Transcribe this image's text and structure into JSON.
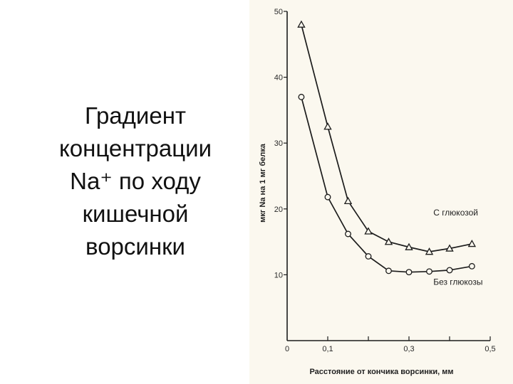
{
  "slide": {
    "title_lines": [
      "Градиент",
      "концентрации",
      "Na⁺ по ходу",
      "кишечной",
      "ворсинки"
    ]
  },
  "chart_data": {
    "type": "line",
    "title": "",
    "xlabel": "Расстояние от кончика ворсинки, мм",
    "ylabel": "мкг Na на 1 мг белка",
    "xlim": [
      0,
      0.5
    ],
    "ylim": [
      0,
      50
    ],
    "x_ticks": [
      {
        "value": 0,
        "label": "0"
      },
      {
        "value": 0.1,
        "label": "0,1"
      },
      {
        "value": 0.3,
        "label": "0,3"
      },
      {
        "value": 0.5,
        "label": "0,5"
      }
    ],
    "y_ticks": [
      {
        "value": 10,
        "label": "10"
      },
      {
        "value": 20,
        "label": "20"
      },
      {
        "value": 30,
        "label": "30"
      },
      {
        "value": 40,
        "label": "40"
      },
      {
        "value": 50,
        "label": "50"
      }
    ],
    "grid": false,
    "series": [
      {
        "name": "С глюкозой",
        "marker": "triangle",
        "label_at": [
          0.36,
          19
        ],
        "x": [
          0.035,
          0.1,
          0.15,
          0.2,
          0.25,
          0.3,
          0.35,
          0.4,
          0.455
        ],
        "y": [
          48,
          32.5,
          21.2,
          16.6,
          15.0,
          14.2,
          13.5,
          14.0,
          14.7
        ]
      },
      {
        "name": "Без глюкозы",
        "marker": "circle",
        "label_at": [
          0.36,
          8.5
        ],
        "x": [
          0.035,
          0.1,
          0.15,
          0.2,
          0.25,
          0.3,
          0.35,
          0.4,
          0.455
        ],
        "y": [
          37,
          21.8,
          16.2,
          12.8,
          10.6,
          10.4,
          10.5,
          10.7,
          11.3
        ]
      }
    ]
  }
}
